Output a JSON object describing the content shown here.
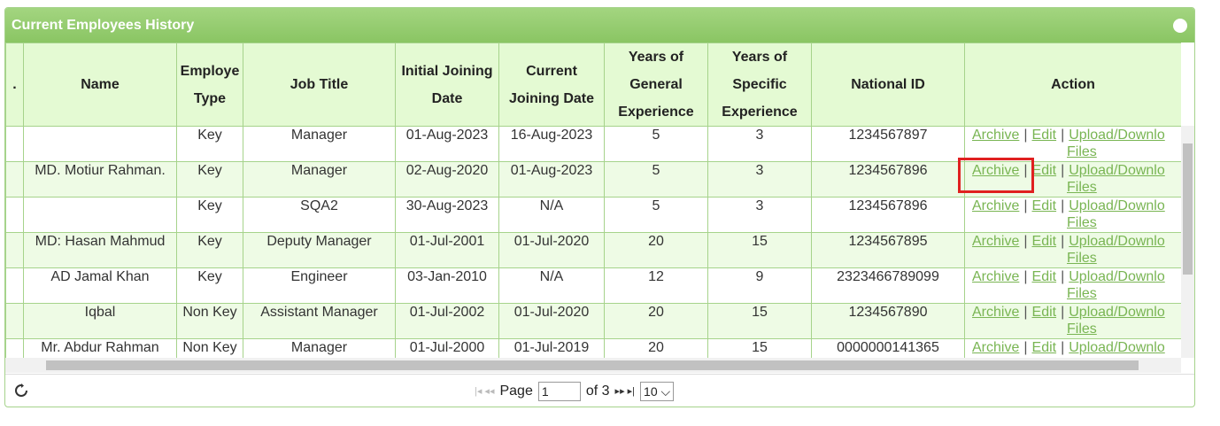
{
  "panel": {
    "title": "Current Employees History"
  },
  "table": {
    "headers": [
      ".",
      "Name",
      "Employe Type",
      "Job Title",
      "Initial Joining Date",
      "Current Joining Date",
      "Years of General Experience",
      "Years of Specific Experience",
      "National ID",
      "Action"
    ],
    "rows": [
      [
        null,
        "Key",
        "Manager",
        "01-Aug-2023",
        "16-Aug-2023",
        5,
        3,
        "1234567897"
      ],
      [
        "MD. Motiur Rahman.",
        "Key",
        "Manager",
        "02-Aug-2020",
        "01-Aug-2023",
        5,
        3,
        "1234567896"
      ],
      [
        null,
        "Key",
        "SQA2",
        "30-Aug-2023",
        "N/A",
        5,
        3,
        "1234567896"
      ],
      [
        "MD: Hasan Mahmud",
        "Key",
        "Deputy Manager",
        "01-Jul-2001",
        "01-Jul-2020",
        20,
        15,
        "1234567895"
      ],
      [
        "AD Jamal Khan",
        "Key",
        "Engineer",
        "03-Jan-2010",
        "N/A",
        12,
        9,
        "2323466789099"
      ],
      [
        "Iqbal",
        "Non Key",
        "Assistant Manager",
        "01-Jul-2002",
        "01-Jul-2020",
        20,
        15,
        "1234567890"
      ],
      [
        "Mr. Abdur Rahman",
        "Non Key",
        "Manager",
        "01-Jul-2000",
        "01-Jul-2019",
        20,
        15,
        "0000000141365"
      ]
    ],
    "actions": [
      "Archive",
      "Edit",
      "Upload/Downlo",
      "Files"
    ],
    "separator": "|"
  },
  "pager": {
    "page_label": "Page",
    "page": "1",
    "of_label": "of 3",
    "page_size": "10"
  }
}
